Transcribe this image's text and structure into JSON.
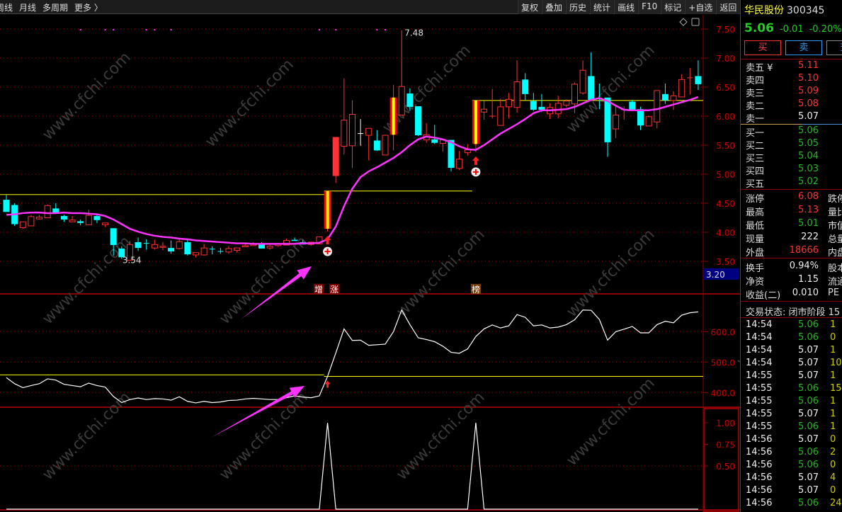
{
  "toolbar": {
    "left_items": [
      "周线",
      "月线",
      "多周期",
      "更多 〉"
    ],
    "right_buttons": [
      "复权",
      "叠加",
      "历史",
      "统计",
      "画线",
      "F10",
      "标记",
      "+自选",
      "返回"
    ]
  },
  "stock": {
    "name": "华民股份",
    "code": "300345",
    "price": "5.06",
    "change": "-0.01",
    "change_pct": "-0.20%",
    "buttons": [
      "买",
      "卖",
      "查"
    ]
  },
  "order_book": {
    "asks": [
      {
        "label": "卖五 ¥",
        "price": "5.11"
      },
      {
        "label": "卖四",
        "price": "5.10"
      },
      {
        "label": "卖三",
        "price": "5.09"
      },
      {
        "label": "卖二",
        "price": "5.08"
      },
      {
        "label": "卖一",
        "price": "5.07"
      }
    ],
    "bids": [
      {
        "label": "买一",
        "price": "5.06"
      },
      {
        "label": "买二",
        "price": "5.05"
      },
      {
        "label": "买三",
        "price": "5.04"
      },
      {
        "label": "买四",
        "price": "5.03"
      },
      {
        "label": "买五",
        "price": "5.02"
      }
    ]
  },
  "stats": [
    {
      "label": "涨停",
      "value": "6.08",
      "color": "red",
      "c3": "跌停"
    },
    {
      "label": "最高",
      "value": "5.13",
      "color": "red",
      "c3": "量比"
    },
    {
      "label": "最低",
      "value": "5.01",
      "color": "green",
      "c3": "市值"
    },
    {
      "label": "现量",
      "value": "222",
      "color": "white",
      "c3": "总量"
    },
    {
      "label": "外盘",
      "value": "18666",
      "color": "red",
      "c3": "内盘"
    }
  ],
  "stats2": [
    {
      "label": "换手",
      "value": "0.94%",
      "c3": "股本"
    },
    {
      "label": "净资",
      "value": "1.15",
      "c3": "流通"
    },
    {
      "label": "收益(二)",
      "value": "0.010",
      "c3": "PE"
    }
  ],
  "trade_status": "交易状态: 闭市阶段 15",
  "ticks": [
    {
      "t": "14:54",
      "p": "5.06",
      "c": "green",
      "v": "1"
    },
    {
      "t": "14:54",
      "p": "5.06",
      "c": "green",
      "v": "0"
    },
    {
      "t": "14:54",
      "p": "5.07",
      "c": "white",
      "v": "1"
    },
    {
      "t": "14:54",
      "p": "5.07",
      "c": "white",
      "v": "10"
    },
    {
      "t": "14:55",
      "p": "5.07",
      "c": "white",
      "v": "1"
    },
    {
      "t": "14:55",
      "p": "5.06",
      "c": "green",
      "v": "15"
    },
    {
      "t": "14:55",
      "p": "5.06",
      "c": "green",
      "v": "1"
    },
    {
      "t": "14:55",
      "p": "5.07",
      "c": "white",
      "v": "1"
    },
    {
      "t": "14:55",
      "p": "5.06",
      "c": "green",
      "v": "1"
    },
    {
      "t": "14:56",
      "p": "5.07",
      "c": "white",
      "v": "0"
    },
    {
      "t": "14:56",
      "p": "5.06",
      "c": "green",
      "v": "2"
    },
    {
      "t": "14:56",
      "p": "5.06",
      "c": "green",
      "v": "0"
    },
    {
      "t": "14:56",
      "p": "5.07",
      "c": "white",
      "v": "4"
    },
    {
      "t": "14:56",
      "p": "5.07",
      "c": "white",
      "v": "0"
    },
    {
      "t": "14:56",
      "p": "5.06",
      "c": "green",
      "v": "24"
    }
  ],
  "watermark": "www.cfchi.com",
  "chart_data": [
    {
      "type": "candlestick",
      "ylim": [
        3.2,
        7.7
      ],
      "yticks": [
        "7.50",
        "7.00",
        "6.50",
        "6.00",
        "5.50",
        "5.00",
        "4.50",
        "4.00",
        "3.50"
      ],
      "cursor_value": "3.20",
      "annotations": {
        "high_label": "7.48",
        "low_label": "3.54",
        "signal_labels": [
          "增",
          "涨",
          "榜"
        ]
      },
      "colors": {
        "up": "#ff3333",
        "down": "#00ffff",
        "ma": "#ff33ff",
        "level": "#ffff00"
      },
      "ohlc": [
        [
          4.56,
          4.64,
          4.35,
          4.35
        ],
        [
          4.47,
          4.5,
          4.11,
          4.14
        ],
        [
          4.08,
          4.18,
          4.06,
          4.18
        ],
        [
          4.11,
          4.3,
          4.11,
          4.27
        ],
        [
          4.23,
          4.3,
          4.22,
          4.26
        ],
        [
          4.25,
          4.48,
          4.25,
          4.46
        ],
        [
          4.41,
          4.5,
          4.32,
          4.32
        ],
        [
          4.28,
          4.3,
          4.18,
          4.22
        ],
        [
          4.18,
          4.28,
          4.18,
          4.21
        ],
        [
          4.19,
          4.22,
          4.12,
          4.16
        ],
        [
          4.13,
          4.39,
          4.13,
          4.29
        ],
        [
          4.28,
          4.31,
          4.16,
          4.21
        ],
        [
          4.13,
          4.16,
          4.09,
          4.16
        ],
        [
          4.07,
          4.07,
          3.6,
          3.78
        ],
        [
          3.72,
          3.76,
          3.54,
          3.57
        ],
        [
          3.52,
          3.85,
          3.52,
          3.79
        ],
        [
          3.83,
          3.91,
          3.68,
          3.73
        ],
        [
          3.81,
          3.88,
          3.7,
          3.8
        ],
        [
          3.73,
          3.87,
          3.7,
          3.79
        ],
        [
          3.74,
          3.83,
          3.69,
          3.76
        ],
        [
          3.73,
          3.86,
          3.63,
          3.67
        ],
        [
          3.72,
          3.88,
          3.7,
          3.84
        ],
        [
          3.83,
          3.88,
          3.6,
          3.62
        ],
        [
          3.61,
          3.65,
          3.57,
          3.65
        ],
        [
          3.61,
          3.8,
          3.6,
          3.73
        ],
        [
          3.71,
          3.76,
          3.62,
          3.7
        ],
        [
          3.67,
          3.73,
          3.63,
          3.66
        ],
        [
          3.66,
          3.76,
          3.63,
          3.72
        ],
        [
          3.69,
          3.73,
          3.65,
          3.73
        ],
        [
          3.75,
          3.8,
          3.75,
          3.77
        ],
        [
          3.77,
          3.83,
          3.77,
          3.79
        ],
        [
          3.79,
          3.83,
          3.72,
          3.72
        ],
        [
          3.73,
          3.8,
          3.7,
          3.76
        ],
        [
          3.77,
          3.8,
          3.75,
          3.8
        ],
        [
          3.78,
          3.89,
          3.78,
          3.86
        ],
        [
          3.87,
          3.91,
          3.85,
          3.85
        ],
        [
          3.83,
          3.87,
          3.79,
          3.79
        ],
        [
          3.79,
          3.83,
          3.77,
          3.83
        ],
        [
          3.8,
          3.92,
          3.8,
          3.92
        ],
        [
          4.06,
          4.71,
          4.01,
          4.71
        ],
        [
          4.97,
          5.64,
          4.85,
          5.64
        ],
        [
          5.48,
          6.65,
          5.34,
          5.93
        ],
        [
          5.49,
          6.27,
          5.11,
          6.03
        ],
        [
          5.7,
          5.95,
          5.49,
          5.7
        ],
        [
          5.67,
          5.79,
          5.24,
          5.79
        ],
        [
          5.58,
          5.76,
          5.4,
          5.41
        ],
        [
          5.33,
          5.68,
          5.33,
          5.67
        ],
        [
          5.68,
          6.54,
          5.41,
          6.32
        ],
        [
          6.02,
          7.48,
          6.02,
          6.51
        ],
        [
          6.39,
          6.48,
          6.09,
          6.16
        ],
        [
          6.17,
          6.17,
          5.66,
          5.67
        ],
        [
          5.59,
          5.88,
          5.54,
          5.68
        ],
        [
          5.6,
          5.85,
          5.52,
          5.54
        ],
        [
          5.53,
          5.59,
          5.39,
          5.59
        ],
        [
          5.59,
          5.59,
          5.05,
          5.11
        ],
        [
          5.1,
          5.4,
          5.07,
          5.26
        ],
        [
          5.37,
          5.52,
          5.32,
          5.42
        ],
        [
          5.52,
          6.27,
          5.38,
          6.27
        ],
        [
          6.07,
          6.26,
          5.94,
          6.12
        ],
        [
          6.0,
          6.47,
          5.96,
          6.0
        ],
        [
          5.84,
          6.3,
          5.84,
          6.16
        ],
        [
          6.16,
          6.4,
          5.96,
          6.29
        ],
        [
          6.15,
          6.96,
          6.06,
          6.59
        ],
        [
          6.63,
          6.74,
          6.27,
          6.38
        ],
        [
          6.26,
          6.4,
          6.09,
          6.11
        ],
        [
          6.16,
          6.38,
          6.07,
          6.11
        ],
        [
          6.04,
          6.22,
          5.95,
          6.15
        ],
        [
          6.04,
          6.35,
          5.96,
          6.22
        ],
        [
          6.19,
          6.29,
          6.15,
          6.26
        ],
        [
          6.21,
          6.58,
          6.05,
          6.55
        ],
        [
          6.4,
          6.96,
          6.37,
          6.79
        ],
        [
          6.69,
          7.1,
          6.27,
          6.28
        ],
        [
          6.31,
          6.56,
          6.12,
          6.3
        ],
        [
          6.32,
          6.32,
          5.3,
          5.55
        ],
        [
          5.78,
          6.2,
          5.62,
          6.02
        ],
        [
          6.11,
          6.17,
          5.94,
          6.11
        ],
        [
          6.25,
          6.28,
          6.09,
          6.09
        ],
        [
          6.12,
          6.16,
          5.76,
          5.84
        ],
        [
          5.83,
          6.01,
          5.83,
          5.99
        ],
        [
          5.9,
          6.44,
          5.79,
          6.44
        ],
        [
          6.38,
          6.56,
          6.21,
          6.27
        ],
        [
          6.27,
          6.43,
          6.11,
          6.35
        ],
        [
          6.33,
          6.72,
          6.33,
          6.63
        ],
        [
          6.66,
          6.83,
          6.37,
          6.66
        ],
        [
          6.69,
          6.96,
          6.45,
          6.55
        ]
      ],
      "limit_up_candles": [
        39,
        47,
        57
      ],
      "ma": [
        4.3,
        4.31,
        4.33,
        4.34,
        4.34,
        4.33,
        4.33,
        4.34,
        4.33,
        4.33,
        4.32,
        4.31,
        4.28,
        4.22,
        4.14,
        4.06,
        4.01,
        3.97,
        3.94,
        3.92,
        3.91,
        3.89,
        3.88,
        3.86,
        3.85,
        3.84,
        3.83,
        3.82,
        3.81,
        3.81,
        3.8,
        3.8,
        3.8,
        3.8,
        3.8,
        3.8,
        3.81,
        3.81,
        3.82,
        3.88,
        4.1,
        4.45,
        4.75,
        4.95,
        5.05,
        5.12,
        5.2,
        5.28,
        5.38,
        5.5,
        5.6,
        5.65,
        5.63,
        5.6,
        5.55,
        5.48,
        5.43,
        5.42,
        5.5,
        5.6,
        5.7,
        5.78,
        5.86,
        5.95,
        6.05,
        6.1,
        6.1,
        6.11,
        6.12,
        6.16,
        6.22,
        6.28,
        6.31,
        6.26,
        6.18,
        6.11,
        6.1,
        6.1,
        6.1,
        6.12,
        6.16,
        6.2,
        6.24,
        6.28,
        6.33
      ],
      "levels": [
        {
          "value": 4.65,
          "from": 0,
          "to": 39
        },
        {
          "value": 4.71,
          "from": 39,
          "to": 57
        },
        {
          "value": 6.27,
          "from": 57,
          "to": 84
        }
      ],
      "signal_arrows": [
        39,
        57
      ],
      "top_dots": [
        9,
        12,
        13,
        17,
        18,
        20,
        38,
        40,
        45,
        46
      ]
    },
    {
      "type": "line",
      "ylim": [
        330,
        700
      ],
      "yticks": [
        "600.0",
        "500.0",
        "400.0"
      ],
      "values": [
        449,
        429,
        416,
        423,
        429,
        445,
        441,
        427,
        423,
        419,
        431,
        423,
        418,
        387,
        367,
        377,
        382,
        377,
        380,
        379,
        375,
        386,
        371,
        366,
        371,
        367,
        369,
        374,
        375,
        379,
        381,
        379,
        377,
        377,
        383,
        389,
        385,
        383,
        389,
        453,
        530,
        609,
        571,
        572,
        555,
        557,
        559,
        600,
        671,
        623,
        580,
        574,
        567,
        552,
        532,
        529,
        543,
        584,
        609,
        622,
        612,
        619,
        656,
        647,
        619,
        622,
        612,
        615,
        623,
        639,
        671,
        670,
        640,
        572,
        600,
        608,
        617,
        596,
        596,
        623,
        634,
        629,
        654,
        662,
        665
      ],
      "levels": [
        {
          "value": 458,
          "from": 0,
          "to": 39
        },
        {
          "value": 453,
          "from": 39,
          "to": 84
        }
      ],
      "signal_arrows": [
        39
      ]
    },
    {
      "type": "line",
      "ylim": [
        0,
        1.15
      ],
      "yticks": [
        "1.00",
        "0.75",
        "0.50"
      ],
      "spikes": [
        39,
        57
      ]
    }
  ]
}
